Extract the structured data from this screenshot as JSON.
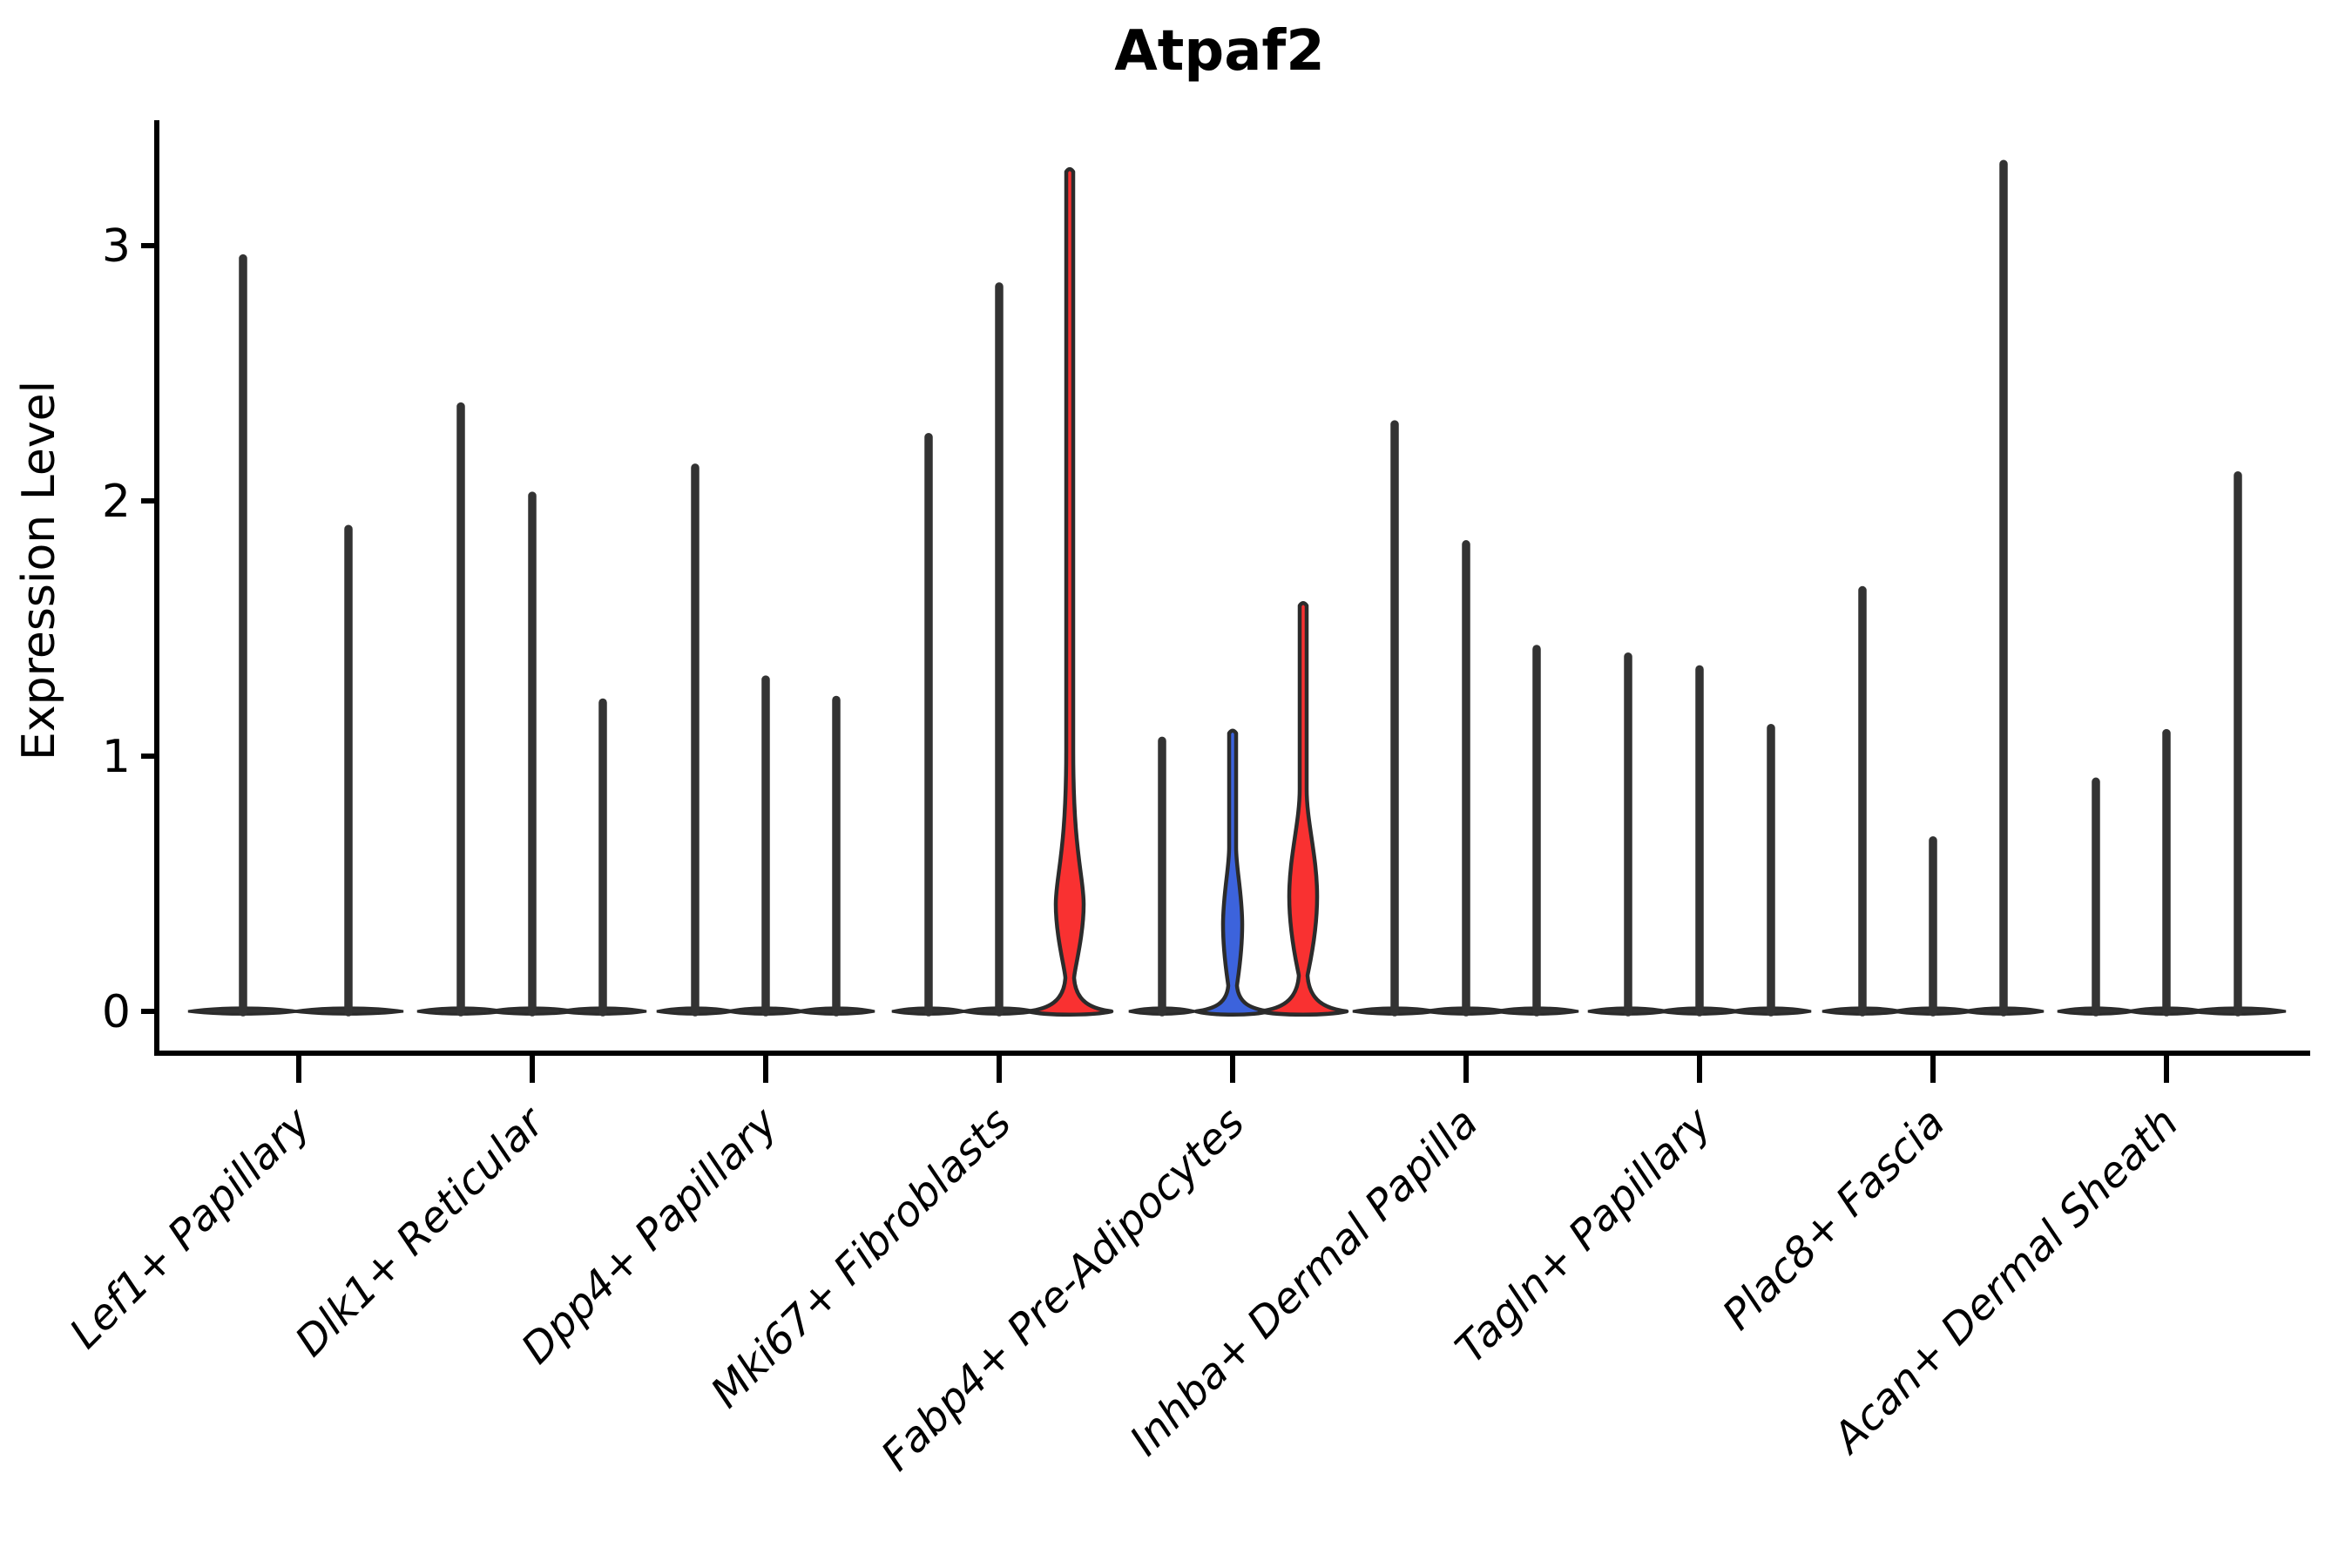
{
  "title": "Atpaf2",
  "axes": {
    "ylabel": "Expression Level",
    "ytick_labels": [
      "0",
      "1",
      "2",
      "3"
    ]
  },
  "colors": {
    "spike_dark": "#333333",
    "outline_dark": "#2b2b2b",
    "red": "#f93131",
    "blue": "#3c63dc",
    "text": "#000000"
  },
  "chart_data": {
    "type": "violin",
    "title": "Atpaf2",
    "xlabel": "",
    "ylabel": "Expression Level",
    "ylim": [
      0,
      3.5
    ],
    "yticks": [
      0,
      1,
      2,
      3
    ],
    "grid": false,
    "legend_position": "none",
    "categories": [
      "Lef1+ Papillary",
      "Dlk1+ Reticular",
      "Dpp4+ Papillary",
      "Mki67+ Fibroblasts",
      "Fabp4+ Pre-Adipocytes",
      "Inhba+ Dermal Papilla",
      "Tagln+ Papillary",
      "Plac8+ Fascia",
      "Acan+ Dermal Sheath"
    ],
    "groups": [
      {
        "category": "Lef1+ Papillary",
        "violins": [
          {
            "dx": -64,
            "max": 2.95,
            "color": "dark",
            "base_hw": 63
          },
          {
            "dx": 57,
            "max": 1.89,
            "color": "dark",
            "base_hw": 63
          }
        ]
      },
      {
        "category": "Dlk1+ Reticular",
        "violins": [
          {
            "dx": -82,
            "max": 2.37,
            "color": "dark",
            "base_hw": 50
          },
          {
            "dx": 0,
            "max": 2.02,
            "color": "dark",
            "base_hw": 50
          },
          {
            "dx": 81,
            "max": 1.21,
            "color": "dark",
            "base_hw": 50
          }
        ]
      },
      {
        "category": "Dpp4+ Papillary",
        "violins": [
          {
            "dx": -81,
            "max": 2.13,
            "color": "dark",
            "base_hw": 44
          },
          {
            "dx": 0,
            "max": 1.3,
            "color": "dark",
            "base_hw": 44
          },
          {
            "dx": 81,
            "max": 1.22,
            "color": "dark",
            "base_hw": 44
          }
        ]
      },
      {
        "category": "Mki67+ Fibroblasts",
        "violins": [
          {
            "dx": -81,
            "max": 2.25,
            "color": "dark",
            "base_hw": 42
          },
          {
            "dx": 0,
            "max": 2.84,
            "color": "dark",
            "base_hw": 42
          },
          {
            "dx": 81,
            "max": 3.31,
            "color": "red",
            "base_hw": 48,
            "bell_top": 0.13,
            "bulge": {
              "center": 0.42,
              "bottom": 0.19,
              "top": 0.62,
              "hw": 16
            }
          }
        ]
      },
      {
        "category": "Fabp4+ Pre-Adipocytes",
        "violins": [
          {
            "dx": -81,
            "max": 1.06,
            "color": "dark",
            "base_hw": 38
          },
          {
            "dx": 0,
            "max": 1.11,
            "color": "blue",
            "base_hw": 42,
            "bell_top": 0.1,
            "bulge": {
              "center": 0.34,
              "bottom": 0.12,
              "top": 0.56,
              "hw": 11
            }
          },
          {
            "dx": 81,
            "max": 1.61,
            "color": "red",
            "base_hw": 50,
            "bell_top": 0.14,
            "bulge": {
              "center": 0.45,
              "bottom": 0.16,
              "top": 0.74,
              "hw": 16
            }
          }
        ]
      },
      {
        "category": "Inhba+ Dermal Papilla",
        "violins": [
          {
            "dx": -82,
            "max": 2.3,
            "color": "dark",
            "base_hw": 48
          },
          {
            "dx": 0,
            "max": 1.83,
            "color": "dark",
            "base_hw": 48
          },
          {
            "dx": 81,
            "max": 1.42,
            "color": "dark",
            "base_hw": 48
          }
        ]
      },
      {
        "category": "Tagln+ Papillary",
        "violins": [
          {
            "dx": -82,
            "max": 1.39,
            "color": "dark",
            "base_hw": 46
          },
          {
            "dx": 0,
            "max": 1.34,
            "color": "dark",
            "base_hw": 46
          },
          {
            "dx": 82,
            "max": 1.11,
            "color": "dark",
            "base_hw": 46
          }
        ]
      },
      {
        "category": "Plac8+ Fascia",
        "violins": [
          {
            "dx": -81,
            "max": 1.65,
            "color": "dark",
            "base_hw": 46
          },
          {
            "dx": 0,
            "max": 0.67,
            "color": "dark",
            "base_hw": 46
          },
          {
            "dx": 81,
            "max": 3.32,
            "color": "dark",
            "base_hw": 46
          }
        ]
      },
      {
        "category": "Acan+ Dermal Sheath",
        "violins": [
          {
            "dx": -81,
            "max": 0.9,
            "color": "dark",
            "base_hw": 44
          },
          {
            "dx": 0,
            "max": 1.09,
            "color": "dark",
            "base_hw": 44
          },
          {
            "dx": 82,
            "max": 2.1,
            "color": "dark",
            "base_hw": 55
          }
        ]
      }
    ]
  }
}
